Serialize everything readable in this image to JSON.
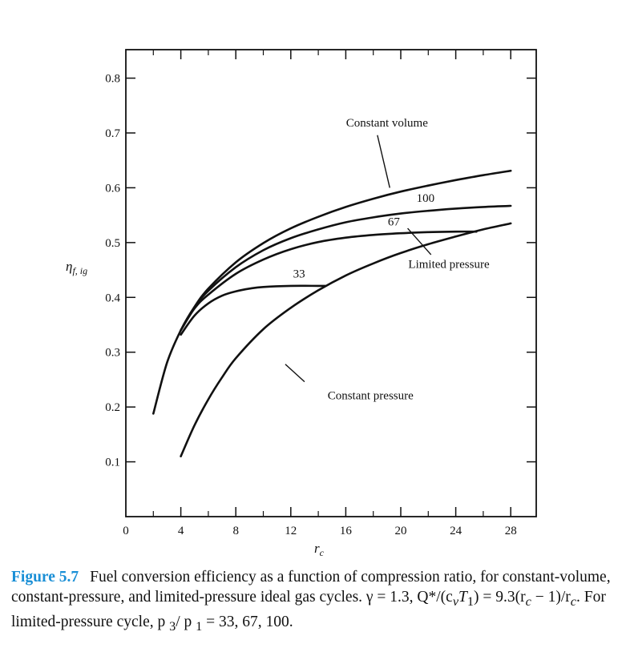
{
  "chart_data": {
    "type": "line",
    "xlabel_symbol": "r",
    "xlabel_sub": "c",
    "ylabel_symbol": "η",
    "ylabel_sub": "f, ig",
    "xlim": [
      0,
      30
    ],
    "ylim": [
      0,
      0.85
    ],
    "x_ticks": [
      0,
      4,
      8,
      12,
      16,
      20,
      24,
      28
    ],
    "y_ticks": [
      0.1,
      0.2,
      0.3,
      0.4,
      0.5,
      0.6,
      0.7,
      0.8
    ],
    "x_tick_labels": [
      "0",
      "4",
      "8",
      "12",
      "16",
      "20",
      "24",
      "28"
    ],
    "y_tick_labels": [
      "0.1",
      "0.2",
      "0.3",
      "0.4",
      "0.5",
      "0.6",
      "0.7",
      "0.8"
    ],
    "grid": false,
    "series": [
      {
        "name": "Constant volume",
        "x": [
          2,
          3,
          4,
          5,
          6,
          8,
          10,
          12,
          14,
          16,
          18,
          20,
          22,
          24,
          26,
          28
        ],
        "y": [
          0.188,
          0.281,
          0.34,
          0.383,
          0.416,
          0.464,
          0.499,
          0.526,
          0.547,
          0.565,
          0.58,
          0.593,
          0.604,
          0.614,
          0.623,
          0.631
        ]
      },
      {
        "name": "100",
        "x": [
          4,
          5,
          6,
          8,
          10,
          12,
          14,
          16,
          18,
          20,
          22,
          24,
          26,
          28
        ],
        "y": [
          0.34,
          0.382,
          0.412,
          0.455,
          0.486,
          0.508,
          0.524,
          0.537,
          0.546,
          0.553,
          0.558,
          0.562,
          0.565,
          0.567
        ]
      },
      {
        "name": "67",
        "x": [
          4,
          5,
          6,
          8,
          10,
          12,
          14,
          16,
          18,
          20,
          22,
          24,
          25.5
        ],
        "y": [
          0.34,
          0.38,
          0.405,
          0.443,
          0.469,
          0.488,
          0.501,
          0.509,
          0.514,
          0.517,
          0.519,
          0.52,
          0.52
        ]
      },
      {
        "name": "33",
        "x": [
          4,
          5,
          6,
          7,
          8,
          9,
          10,
          12,
          14,
          14.5
        ],
        "y": [
          0.332,
          0.367,
          0.389,
          0.403,
          0.411,
          0.416,
          0.419,
          0.421,
          0.421,
          0.421
        ]
      },
      {
        "name": "Constant pressure",
        "x": [
          4,
          5,
          6,
          7,
          8,
          10,
          12,
          14,
          16,
          18,
          20,
          22,
          24,
          26,
          28
        ],
        "y": [
          0.11,
          0.167,
          0.214,
          0.254,
          0.289,
          0.342,
          0.381,
          0.413,
          0.44,
          0.462,
          0.481,
          0.497,
          0.511,
          0.524,
          0.535
        ]
      }
    ],
    "annotations": [
      {
        "text": "Constant volume",
        "x": 19.0,
        "y": 0.712
      },
      {
        "text": "100",
        "x": 21.8,
        "y": 0.574
      },
      {
        "text": "67",
        "x": 19.5,
        "y": 0.531
      },
      {
        "text": "Limited pressure",
        "x": 23.5,
        "y": 0.454
      },
      {
        "text": "33",
        "x": 12.6,
        "y": 0.436
      },
      {
        "text": "Constant pressure",
        "x": 17.8,
        "y": 0.214
      }
    ],
    "leaders": [
      {
        "from": [
          18.3,
          0.696
        ],
        "to": [
          19.2,
          0.6
        ]
      },
      {
        "from": [
          20.5,
          0.526
        ],
        "to": [
          22.2,
          0.478
        ]
      },
      {
        "from": [
          13.0,
          0.246
        ],
        "to": [
          11.6,
          0.278
        ]
      }
    ]
  },
  "caption": {
    "label": "Figure 5.7",
    "text": "Fuel conversion efficiency as a function of compression ratio, for constant-volume, constant-pressure, and limited-pressure ideal gas cycles. γ = 1.3, Q*/(c",
    "sub_v": "v",
    "T_text": "T",
    "sub_1": "1",
    "mid_text": ") = 9.3(r",
    "sub_c": "c",
    "minus_text": " − 1)/r",
    "tail_text": ". For limited-pressure cycle, p ",
    "sub_3": "3",
    "slash_text": "/ p ",
    "end_text": " = 33, 67, 100."
  }
}
